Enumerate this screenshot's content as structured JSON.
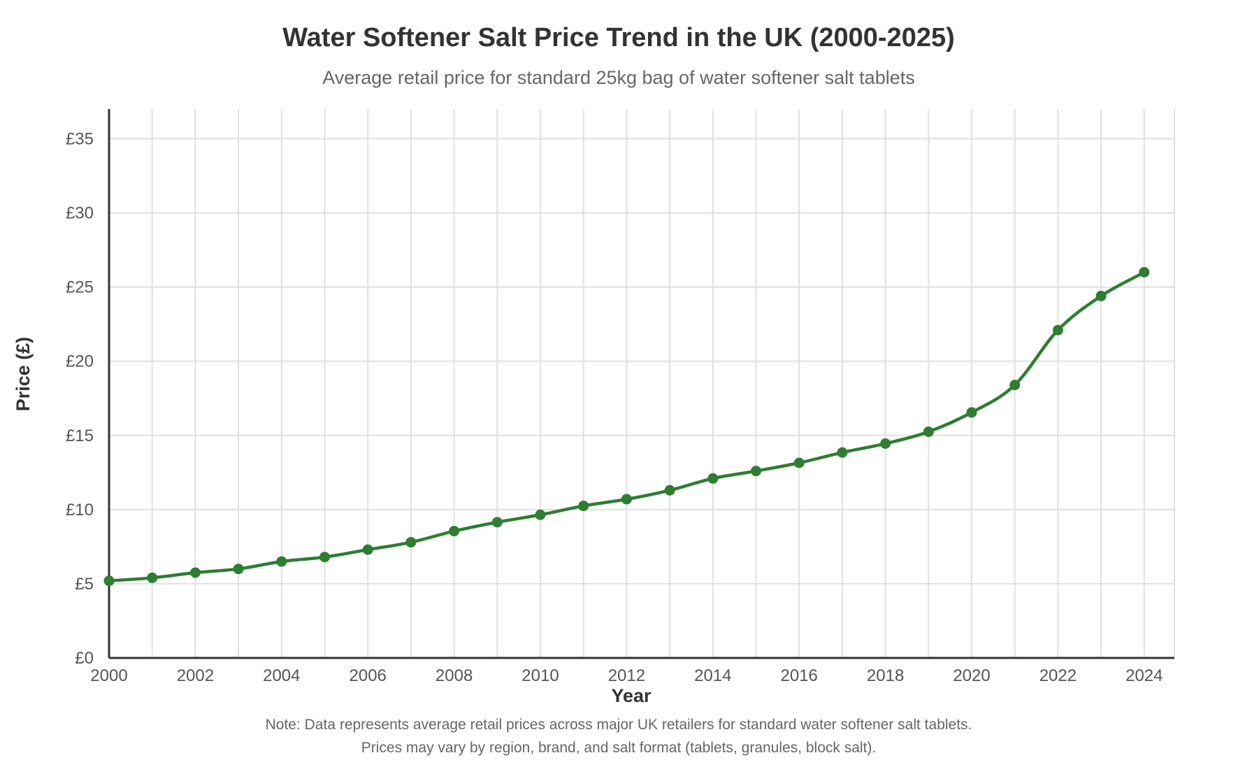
{
  "chart_data": {
    "type": "line",
    "title": "Water Softener Salt Price Trend in the UK (2000-2025)",
    "subtitle": "Average retail price for standard 25kg bag of water softener salt tablets",
    "xlabel": "Year",
    "ylabel": "Price (£)",
    "x": [
      2000,
      2001,
      2002,
      2003,
      2004,
      2005,
      2006,
      2007,
      2008,
      2009,
      2010,
      2011,
      2012,
      2013,
      2014,
      2015,
      2016,
      2017,
      2018,
      2019,
      2020,
      2021,
      2022,
      2023,
      2024
    ],
    "series": [
      {
        "values": [
          5.2,
          5.4,
          5.75,
          6.0,
          6.5,
          6.8,
          7.3,
          7.8,
          8.55,
          9.15,
          9.65,
          10.25,
          10.7,
          11.3,
          12.1,
          12.6,
          13.15,
          13.85,
          14.45,
          15.25,
          16.55,
          18.4,
          22.1,
          24.4,
          26.0
        ],
        "color": "#2e7d32"
      }
    ],
    "xlim": [
      2000,
      2024.7
    ],
    "ylim": [
      0,
      37
    ],
    "xticks": [
      2000,
      2002,
      2004,
      2006,
      2008,
      2010,
      2012,
      2014,
      2016,
      2018,
      2020,
      2022,
      2024
    ],
    "xtick_labels": [
      "2000",
      "2002",
      "2004",
      "2006",
      "2008",
      "2010",
      "2012",
      "2014",
      "2016",
      "2018",
      "2020",
      "2022",
      "2024"
    ],
    "yticks": [
      0,
      5,
      10,
      15,
      20,
      25,
      30,
      35
    ],
    "ytick_labels": [
      "£0",
      "£5",
      "£10",
      "£15",
      "£20",
      "£25",
      "£30",
      "£35"
    ],
    "grid": true,
    "legend": "none"
  },
  "notes": [
    "Note: Data represents average retail prices across major UK retailers for standard water softener salt tablets.",
    "Prices may vary by region, brand, and salt format (tablets, granules, block salt)."
  ],
  "colors": {
    "line": "#2e7d32",
    "grid": "#e0e0e0",
    "axis": "#333333"
  }
}
